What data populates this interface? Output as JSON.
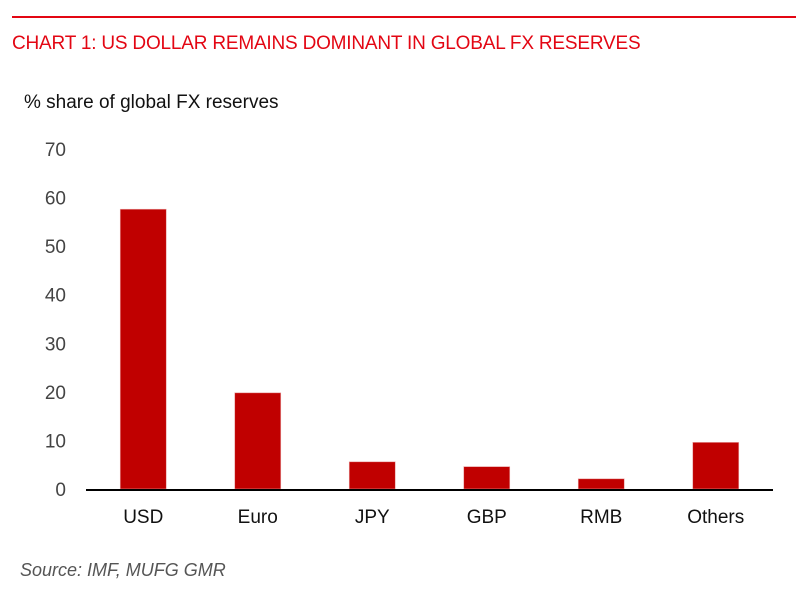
{
  "chart_data": {
    "type": "bar",
    "title": "CHART 1: US DOLLAR REMAINS DOMINANT IN GLOBAL FX RESERVES",
    "ylabel": "% share of global FX reserves",
    "xlabel": "",
    "categories": [
      "USD",
      "Euro",
      "JPY",
      "GBP",
      "RMB",
      "Others"
    ],
    "values": [
      57.6,
      19.8,
      5.6,
      4.6,
      2.1,
      9.6
    ],
    "ylim": [
      0,
      70
    ],
    "yticks": [
      "0",
      "10",
      "20",
      "30",
      "40",
      "50",
      "60",
      "70"
    ],
    "grid": false,
    "source": "Source: IMF, MUFG GMR",
    "bar_color": "#c00000",
    "accent_color": "#e30613"
  }
}
